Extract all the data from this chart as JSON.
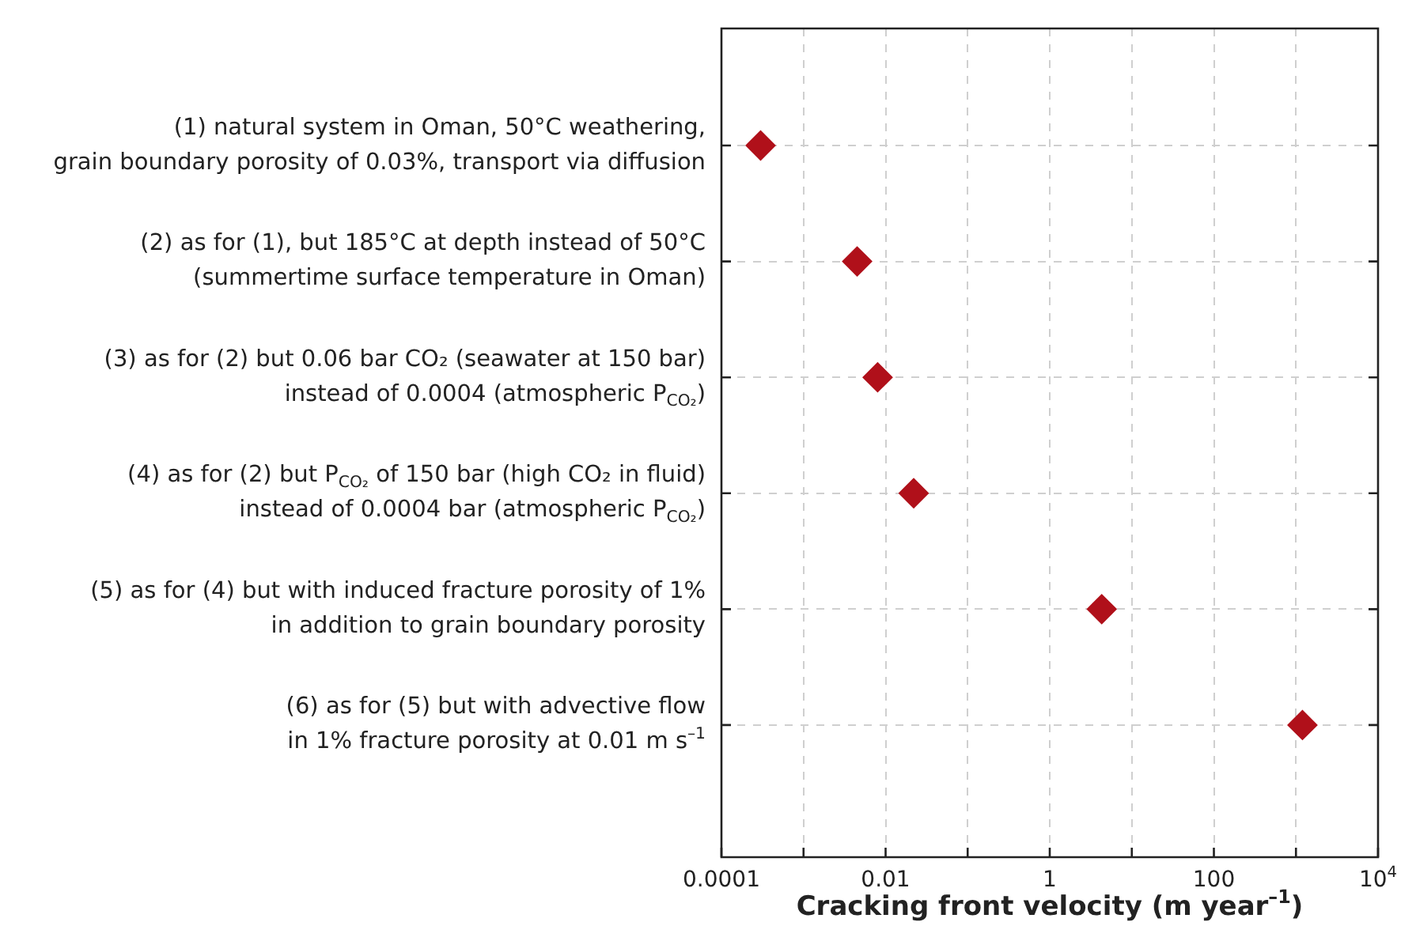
{
  "chart_data": {
    "type": "scatter",
    "orientation": "horizontal",
    "categories": [
      "(1) natural system in Oman, 50°C weathering,\ngrain boundary porosity of 0.03%, transport via diffusion",
      "(2) as for (1), but 185°C at depth instead of 50°C\n(summertime surface temperature in Oman)",
      "(3) as for (2) but 0.06 bar CO₂ (seawater at 150 bar)\ninstead of 0.0004 (atmospheric P$_{CO₂}$)",
      "(4) as for (2) but P$_{CO₂}$ of 150 bar (high CO₂ in fluid)\ninstead of 0.0004 bar (atmospheric P$_{CO₂}$)",
      "(5) as for (4) but with induced fracture porosity of 1%\nin addition to grain boundary porosity",
      "(6) as for (5) but with advective flow\nin 1% fracture porosity at 0.01 m s$^{–1}$"
    ],
    "values": [
      0.0003,
      0.0045,
      0.008,
      0.022,
      4.3,
      1200
    ],
    "color": "#b0101a",
    "xlabel": "Cracking front velocity (m year$^{–1}$)",
    "xlim": [
      0.0001,
      10000
    ],
    "xticks": [
      0.0001,
      {
        "value": 0.001,
        "label": null
      },
      0.01,
      {
        "value": 0.1,
        "label": null
      },
      1,
      {
        "value": 10,
        "label": null
      },
      100,
      {
        "value": 1000,
        "label": null
      },
      {
        "value": 10000,
        "label": "10$^{4}$"
      }
    ],
    "log": "x",
    "grid": true,
    "marker": "diamond"
  }
}
